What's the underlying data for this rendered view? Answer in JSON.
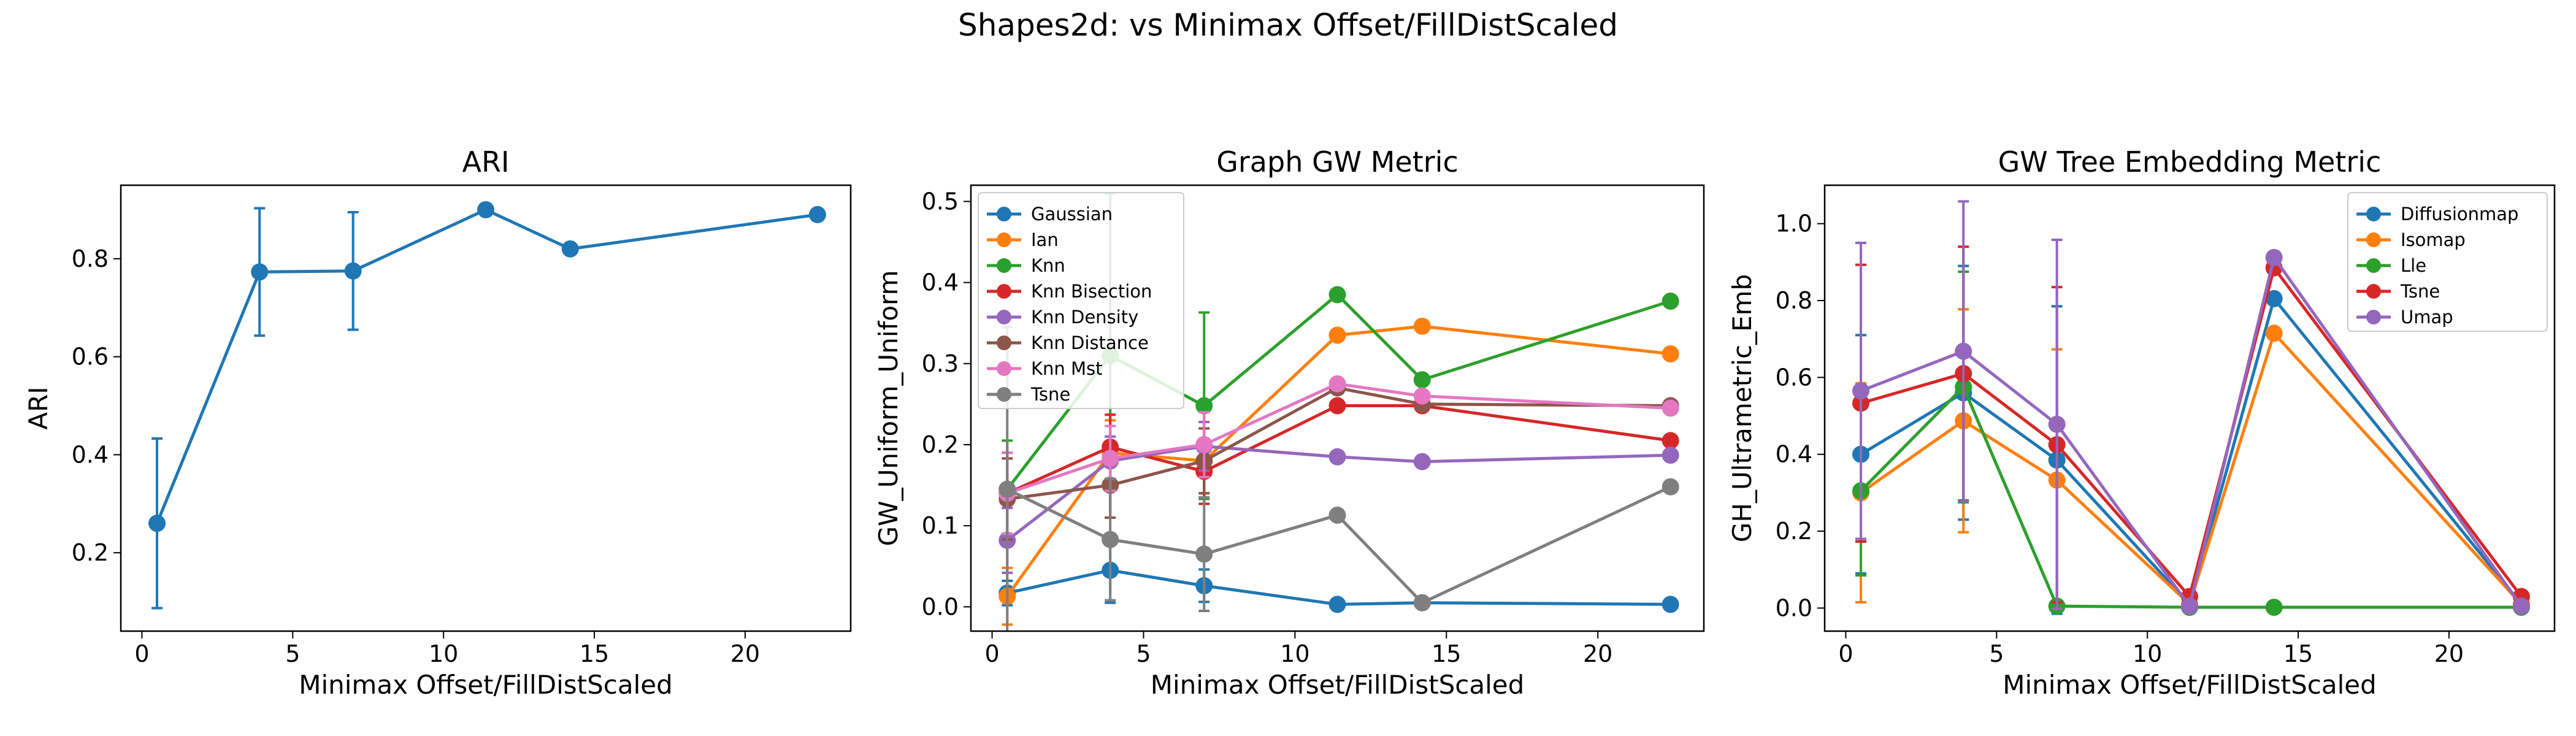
{
  "suptitle": "Shapes2d: vs Minimax Offset/FillDistScaled",
  "chart_data": [
    {
      "type": "line",
      "title": "ARI",
      "xlabel": "Minimax Offset/FillDistScaled",
      "ylabel": "ARI",
      "xlim": [
        -0.7,
        23.5
      ],
      "ylim": [
        0.04,
        0.95
      ],
      "xticks": [
        0,
        5,
        10,
        15,
        20
      ],
      "yticks": [
        0.2,
        0.4,
        0.6,
        0.8
      ],
      "ytick_decimals": 1,
      "legend": null,
      "x": [
        0.5,
        3.9,
        7.0,
        11.4,
        14.2,
        22.4
      ],
      "series": [
        {
          "color": "#1f77b4",
          "values": [
            0.26,
            0.773,
            0.775,
            0.9,
            0.82,
            0.89
          ],
          "err": [
            0.173,
            0.13,
            0.12,
            0.0,
            0.0,
            0.0
          ]
        }
      ]
    },
    {
      "type": "line",
      "title": "Graph GW Metric",
      "xlabel": "Minimax Offset/FillDistScaled",
      "ylabel": "GW_Uniform_Uniform",
      "xlim": [
        -0.7,
        23.5
      ],
      "ylim": [
        -0.03,
        0.52
      ],
      "xticks": [
        0,
        5,
        10,
        15,
        20
      ],
      "yticks": [
        0.0,
        0.1,
        0.2,
        0.3,
        0.4,
        0.5
      ],
      "ytick_decimals": 1,
      "legend": "top-left",
      "x": [
        0.5,
        3.9,
        7.0,
        11.4,
        14.2,
        22.4
      ],
      "series": [
        {
          "name": "Gaussian",
          "color": "#1f77b4",
          "values": [
            0.017,
            0.045,
            0.026,
            0.003,
            0.005,
            0.003
          ],
          "err": [
            0.015,
            0.04,
            0.02,
            0.0,
            0.0,
            0.0
          ]
        },
        {
          "name": "Ian",
          "color": "#ff7f0e",
          "values": [
            0.013,
            0.19,
            0.18,
            0.335,
            0.346,
            0.312
          ],
          "err": [
            0.035,
            0.04,
            0.04,
            0.0,
            0.0,
            0.0
          ]
        },
        {
          "name": "Knn",
          "color": "#2ca02c",
          "values": [
            0.145,
            0.31,
            0.248,
            0.385,
            0.28,
            0.377
          ],
          "err": [
            0.06,
            0.2,
            0.115,
            0.0,
            0.0,
            0.0
          ]
        },
        {
          "name": "Knn Bisection",
          "color": "#d62728",
          "values": [
            0.14,
            0.197,
            0.167,
            0.248,
            0.248,
            0.205
          ],
          "err": [
            0.05,
            0.04,
            0.04,
            0.0,
            0.0,
            0.0
          ]
        },
        {
          "name": "Knn Density",
          "color": "#9467bd",
          "values": [
            0.082,
            0.18,
            0.198,
            0.185,
            0.179,
            0.187
          ],
          "err": [
            0.04,
            0.03,
            0.03,
            0.0,
            0.0,
            0.0
          ]
        },
        {
          "name": "Knn Distance",
          "color": "#8c564b",
          "values": [
            0.133,
            0.15,
            0.18,
            0.27,
            0.25,
            0.248
          ],
          "err": [
            0.05,
            0.04,
            0.04,
            0.0,
            0.0,
            0.0
          ]
        },
        {
          "name": "Knn Mst",
          "color": "#e377c2",
          "values": [
            0.14,
            0.183,
            0.2,
            0.275,
            0.26,
            0.245
          ],
          "err": [
            0.05,
            0.04,
            0.04,
            0.0,
            0.0,
            0.0
          ]
        },
        {
          "name": "Tsne",
          "color": "#7f7f7f",
          "values": [
            0.145,
            0.083,
            0.065,
            0.113,
            0.005,
            0.148
          ],
          "err": [
            0.2,
            0.075,
            0.07,
            0.0,
            0.0,
            0.0
          ]
        }
      ]
    },
    {
      "type": "line",
      "title": "GW Tree Embedding Metric",
      "xlabel": "Minimax Offset/FillDistScaled",
      "ylabel": "GH_Ultrametric_Emb",
      "xlim": [
        -0.7,
        23.5
      ],
      "ylim": [
        -0.06,
        1.1
      ],
      "xticks": [
        0,
        5,
        10,
        15,
        20
      ],
      "yticks": [
        0.0,
        0.2,
        0.4,
        0.6,
        0.8,
        1.0
      ],
      "ytick_decimals": 1,
      "legend": "top-right",
      "x": [
        0.5,
        3.9,
        7.0,
        11.4,
        14.2,
        22.4
      ],
      "series": [
        {
          "name": "Diffusionmap",
          "color": "#1f77b4",
          "values": [
            0.4,
            0.56,
            0.385,
            0.01,
            0.805,
            0.01
          ],
          "err": [
            0.31,
            0.33,
            0.4,
            0.0,
            0.0,
            0.0
          ]
        },
        {
          "name": "Isomap",
          "color": "#ff7f0e",
          "values": [
            0.3,
            0.487,
            0.333,
            0.01,
            0.715,
            0.01
          ],
          "err": [
            0.285,
            0.29,
            0.34,
            0.0,
            0.0,
            0.0
          ]
        },
        {
          "name": "Lle",
          "color": "#2ca02c",
          "values": [
            0.305,
            0.575,
            0.005,
            0.002,
            0.002,
            0.002
          ],
          "err": [
            0.22,
            0.3,
            0.0,
            0.0,
            0.0,
            0.0
          ]
        },
        {
          "name": "Tsne",
          "color": "#d62728",
          "values": [
            0.533,
            0.61,
            0.425,
            0.03,
            0.885,
            0.03
          ],
          "err": [
            0.36,
            0.33,
            0.41,
            0.0,
            0.0,
            0.0
          ]
        },
        {
          "name": "Umap",
          "color": "#9467bd",
          "values": [
            0.565,
            0.668,
            0.478,
            0.005,
            0.912,
            0.005
          ],
          "err": [
            0.385,
            0.39,
            0.48,
            0.0,
            0.0,
            0.0
          ]
        }
      ]
    }
  ]
}
